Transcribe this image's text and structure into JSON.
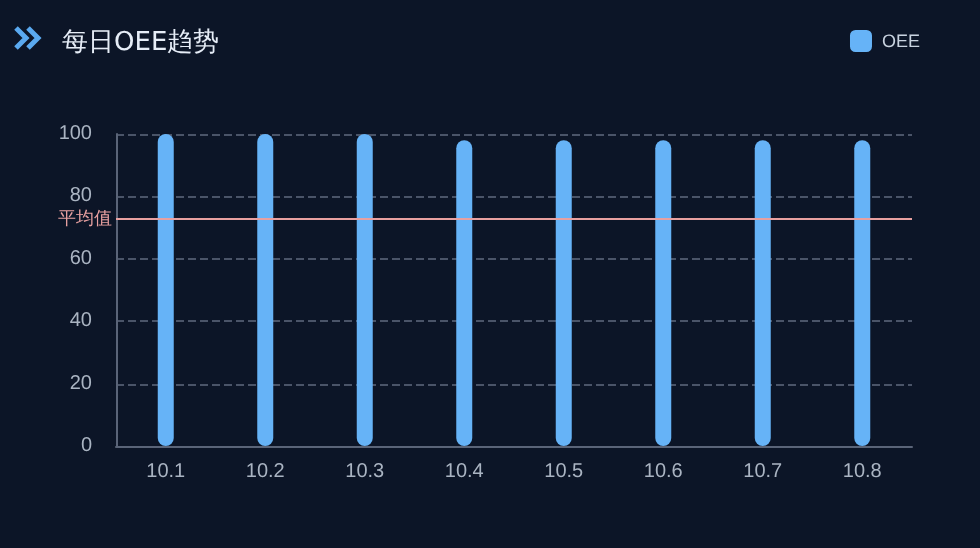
{
  "chart_data": {
    "type": "bar",
    "title": "每日OEE趋势",
    "categories": [
      "10.1",
      "10.2",
      "10.3",
      "10.4",
      "10.5",
      "10.6",
      "10.7",
      "10.8"
    ],
    "series": [
      {
        "name": "OEE",
        "color": "#66b3f7",
        "values": [
          100,
          100,
          100,
          98,
          98,
          98,
          98,
          98
        ]
      }
    ],
    "ylim": [
      0,
      100
    ],
    "yticks": [
      0,
      20,
      40,
      60,
      80,
      100
    ],
    "grid": "y",
    "legend": "top right",
    "ref_lines": [
      {
        "axis": "y",
        "value": 73,
        "label": "平均值",
        "color": "#e8a0a0"
      }
    ]
  }
}
